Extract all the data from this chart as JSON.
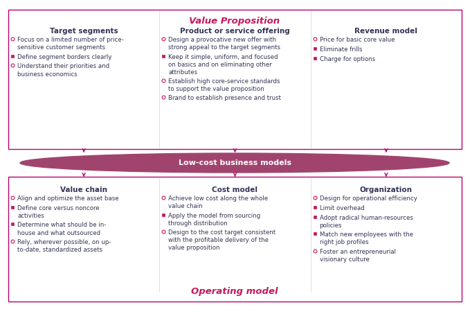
{
  "background_color": "#ffffff",
  "border_color": "#b5006e",
  "ellipse_fill": "#a0446e",
  "ellipse_text": "Low-cost business models",
  "ellipse_text_color": "#ffffff",
  "top_box_title": "Value Proposition",
  "top_box_title_color": "#c2185b",
  "bottom_box_title": "Operating model",
  "bottom_box_title_color": "#c2185b",
  "arrow_color": "#b5006e",
  "text_color": "#333355",
  "marker_large_color": "#c2185b",
  "marker_small_color": "#c2185b",
  "top_columns": [
    {
      "title": "Target segments",
      "bullets": [
        {
          "size": "large",
          "text": "Focus on a limited number of price-\nsensitive customer segments"
        },
        {
          "size": "small",
          "text": "Define segment borders clearly"
        },
        {
          "size": "large",
          "text": "Understand their priorities and\nbusiness economics"
        }
      ]
    },
    {
      "title": "Product or service offering",
      "bullets": [
        {
          "size": "large",
          "text": "Design a provocative new offer with\nstrong appeal to the target segments"
        },
        {
          "size": "small",
          "text": "Keep it simple, uniform, and focused\non basics and on eliminating other\nattributes"
        },
        {
          "size": "large",
          "text": "Establish high core-service standards\nto support the value proposition"
        },
        {
          "size": "large",
          "text": "Brand to establish presence and trust"
        }
      ]
    },
    {
      "title": "Revenue model",
      "bullets": [
        {
          "size": "large",
          "text": "Price for basic core value"
        },
        {
          "size": "small",
          "text": "Eliminate frills"
        },
        {
          "size": "small",
          "text": "Charge for options"
        }
      ]
    }
  ],
  "bottom_columns": [
    {
      "title": "Value chain",
      "bullets": [
        {
          "size": "large",
          "text": "Align and optimize the asset base"
        },
        {
          "size": "small",
          "text": "Define core versus noncore\nactivities"
        },
        {
          "size": "small",
          "text": "Determine what should be in-\nhouse and what outsourced"
        },
        {
          "size": "large",
          "text": "Rely, wherever possible, on up-\nto-date, standardized assets"
        }
      ]
    },
    {
      "title": "Cost model",
      "bullets": [
        {
          "size": "large",
          "text": "Achieve low cost along the whole\nvalue chain"
        },
        {
          "size": "small",
          "text": "Apply the model from sourcing\nthrough distribution"
        },
        {
          "size": "large",
          "text": "Design to the cost target consistent\nwith the profitable delivery of the\nvalue proposition"
        }
      ]
    },
    {
      "title": "Organization",
      "bullets": [
        {
          "size": "large",
          "text": "Design for operational efficiency"
        },
        {
          "size": "small",
          "text": "Limit overhead"
        },
        {
          "size": "small",
          "text": "Adopt radical human-resources\npolicies"
        },
        {
          "size": "small",
          "text": "Match new employees with the\nright job profiles"
        },
        {
          "size": "large",
          "text": "Foster an entrepreneurial\nvisionary culture"
        }
      ]
    }
  ],
  "fig_w": 6.79,
  "fig_h": 4.53,
  "dpi": 100
}
